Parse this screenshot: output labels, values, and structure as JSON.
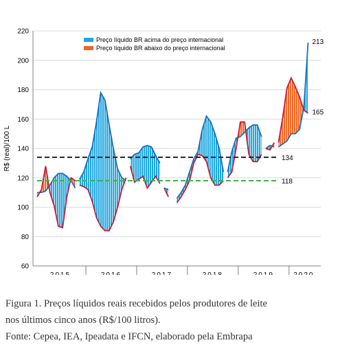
{
  "chart_data": {
    "type": "area",
    "ylabel": "R$ (real)/100 L",
    "ylim": [
      60,
      220
    ],
    "yticks": [
      60,
      80,
      100,
      120,
      140,
      160,
      180,
      200,
      220
    ],
    "x_unit": "month index (Jan 2015 = 0)",
    "xlim": [
      -1,
      67
    ],
    "year_labels": [
      {
        "label": "2015",
        "center": 5.5
      },
      {
        "label": "2016",
        "center": 17.5
      },
      {
        "label": "2017",
        "center": 29.5
      },
      {
        "label": "2018",
        "center": 41.5
      },
      {
        "label": "2019",
        "center": 53.5
      },
      {
        "label": "2020",
        "center": 63
      }
    ],
    "series": [
      {
        "name": "Preço líquido BR acima do preço internacional",
        "color": "#1ea7e1",
        "note": "área azul"
      },
      {
        "name": "Preço líquido BR abaixo do preço internacional",
        "color": "#f26522",
        "note": "área laranja"
      }
    ],
    "segments": [
      {
        "x": [
          0,
          1,
          2,
          3,
          4,
          5,
          6,
          7,
          8,
          9
        ],
        "br": [
          110,
          110,
          111,
          115,
          120,
          123,
          123,
          121,
          118,
          113
        ],
        "intl": [
          107,
          112,
          128,
          110,
          101,
          87,
          86,
          107,
          120,
          118
        ]
      },
      {
        "x": [
          10,
          11,
          12,
          13,
          14,
          15,
          16,
          17,
          18,
          19,
          20,
          21
        ],
        "br": [
          119,
          124,
          133,
          141,
          158,
          178,
          173,
          156,
          140,
          126,
          120,
          118
        ],
        "intl": [
          115,
          114,
          112,
          104,
          93,
          87,
          84,
          84,
          90,
          100,
          112,
          120
        ]
      },
      {
        "x": [
          22,
          23,
          24,
          25,
          26,
          27,
          28,
          29
        ],
        "br": [
          133,
          136,
          137,
          141,
          142,
          141,
          135,
          130
        ],
        "intl": [
          128,
          117,
          119,
          121,
          113,
          117,
          121,
          116
        ]
      },
      {
        "x": [
          30,
          31
        ],
        "br": [
          113,
          112
        ],
        "intl": [
          113,
          107
        ]
      },
      {
        "x": [
          33,
          34,
          35,
          36,
          37,
          38,
          39,
          40,
          41,
          42,
          43,
          44
        ],
        "br": [
          106,
          110,
          115,
          124,
          133,
          138,
          153,
          162,
          158,
          150,
          140,
          124
        ],
        "intl": [
          103,
          107,
          112,
          118,
          130,
          136,
          135,
          131,
          120,
          115,
          115,
          118
        ]
      },
      {
        "x": [
          45,
          46,
          47,
          48,
          49,
          50,
          51,
          52,
          53
        ],
        "br": [
          124,
          138,
          147,
          148,
          151,
          154,
          156,
          156,
          148
        ],
        "intl": [
          120,
          124,
          140,
          158,
          158,
          136,
          131,
          131,
          136
        ]
      },
      {
        "x": [
          54,
          55,
          56
        ],
        "br": [
          140,
          142,
          141
        ],
        "intl": [
          140,
          139,
          144
        ]
      },
      {
        "x": [
          57,
          58,
          59,
          60,
          61,
          62,
          63,
          64
        ],
        "br": [
          141,
          143,
          145,
          150,
          150,
          153,
          168,
          212
        ],
        "intl": [
          144,
          161,
          181,
          188,
          182,
          175,
          166,
          164
        ]
      }
    ],
    "reference_lines": [
      {
        "value": 134,
        "label": "134",
        "color": "#222222",
        "style": "dashed"
      },
      {
        "value": 118,
        "label": "118",
        "color": "#3cb44b",
        "style": "dashed"
      }
    ],
    "annotations": [
      {
        "text": "213",
        "value": 213
      },
      {
        "text": "165",
        "value": 165
      }
    ]
  },
  "caption": {
    "line1": "Figura 1. Preços líquidos reais recebidos pelos produtores de leite",
    "line2": "nos últimos cinco anos (R$/100 litros).",
    "line3": "Fonte: Cepea, IEA, Ipeadata e IFCN, elaborado pela Embrapa"
  }
}
